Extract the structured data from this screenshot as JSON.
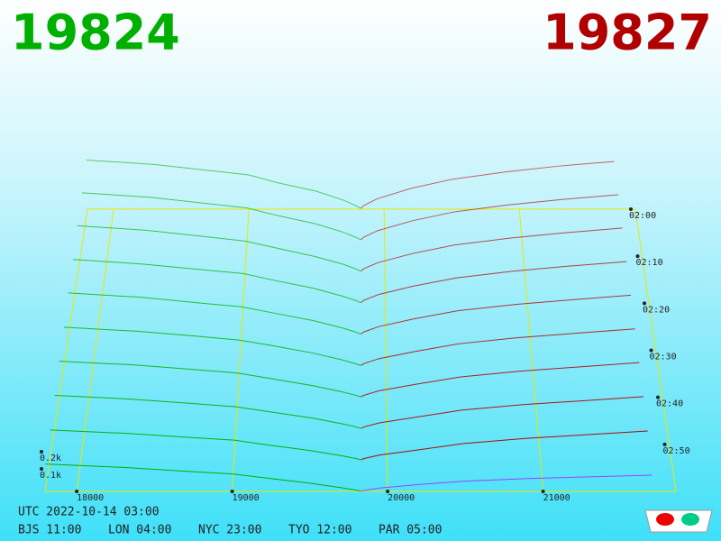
{
  "chart_data": {
    "type": "depth3d",
    "bid_label": "19824",
    "ask_label": "19827",
    "bid_color": "#00b000",
    "ask_color": "#b00000",
    "front_ask_color": "#a040ff",
    "floor_color": "#e8e800",
    "price_ticks": [
      18000,
      19000,
      20000,
      21000
    ],
    "depth_ticks": [
      {
        "value": 100,
        "label": "0.1k"
      },
      {
        "value": 200,
        "label": "0.2k"
      }
    ],
    "time_ticks": [
      "02:00",
      "02:10",
      "02:20",
      "02:30",
      "02:40",
      "02:50"
    ],
    "bid_prices": [
      19824,
      19800,
      19700,
      19500,
      19200,
      19000,
      18700,
      18300,
      17800
    ],
    "ask_prices": [
      19827,
      19850,
      19950,
      20200,
      20500,
      20900,
      21300,
      21700
    ],
    "layers": [
      {
        "bids": [
          5,
          20,
          60,
          120,
          180,
          230,
          260,
          300,
          330
        ],
        "asks": [
          5,
          25,
          70,
          140,
          200,
          250,
          290,
          320
        ]
      },
      {
        "bids": [
          5,
          18,
          55,
          110,
          170,
          215,
          245,
          285,
          315
        ],
        "asks": [
          5,
          23,
          65,
          130,
          188,
          235,
          272,
          302
        ]
      },
      {
        "bids": [
          4,
          17,
          50,
          100,
          160,
          200,
          230,
          270,
          300
        ],
        "asks": [
          4,
          21,
          60,
          120,
          175,
          220,
          255,
          285
        ]
      },
      {
        "bids": [
          4,
          15,
          45,
          95,
          150,
          190,
          215,
          250,
          280
        ],
        "asks": [
          4,
          19,
          55,
          110,
          162,
          205,
          238,
          266
        ]
      },
      {
        "bids": [
          3,
          14,
          42,
          88,
          140,
          175,
          200,
          235,
          262
        ],
        "asks": [
          3,
          17,
          50,
          100,
          150,
          190,
          220,
          248
        ]
      },
      {
        "bids": [
          3,
          12,
          38,
          80,
          130,
          160,
          185,
          215,
          240
        ],
        "asks": [
          3,
          15,
          45,
          90,
          138,
          175,
          203,
          230
        ]
      },
      {
        "bids": [
          3,
          11,
          34,
          72,
          118,
          148,
          170,
          198,
          220
        ],
        "asks": [
          3,
          13,
          40,
          80,
          125,
          160,
          186,
          212
        ]
      },
      {
        "bids": [
          2,
          10,
          30,
          65,
          105,
          132,
          152,
          178,
          200
        ],
        "asks": [
          2,
          11,
          35,
          70,
          112,
          145,
          168,
          193
        ]
      },
      {
        "bids": [
          2,
          8,
          26,
          56,
          92,
          118,
          135,
          158,
          178
        ],
        "asks": [
          2,
          9,
          30,
          60,
          98,
          128,
          150,
          172
        ]
      },
      {
        "bids": [
          2,
          7,
          22,
          48,
          80,
          102,
          118,
          140,
          160
        ],
        "asks": [
          2,
          6,
          20,
          40,
          60,
          75,
          85,
          95
        ]
      }
    ],
    "footer_utc": "UTC 2022-10-14 03:00",
    "footer_zones": [
      "BJS 11:00",
      "LON 04:00",
      "NYC 23:00",
      "TYO 12:00",
      "PAR 05:00"
    ]
  }
}
